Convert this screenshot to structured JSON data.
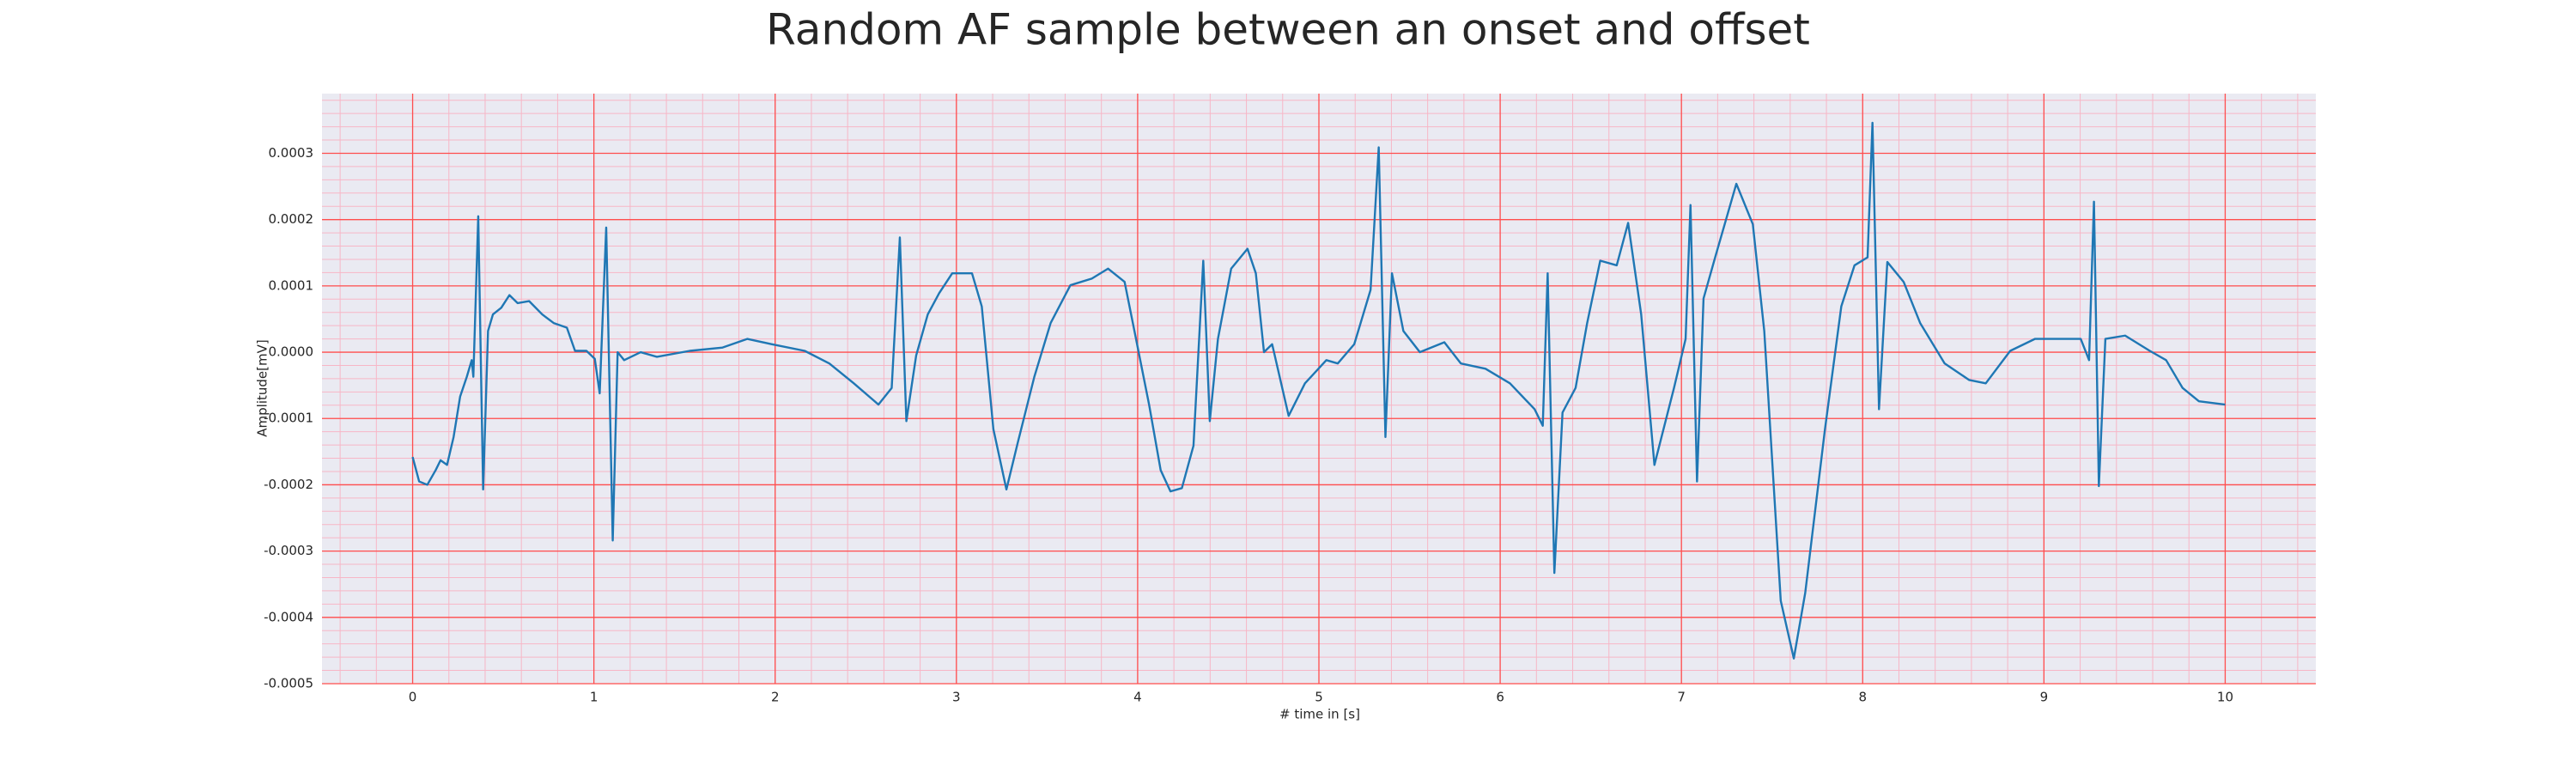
{
  "chart_data": {
    "type": "line",
    "title": "Random AF sample between an onset and offset",
    "x_label": "# time in [s]",
    "y_label": "Amplitude[mV]",
    "color": "#1f77b4",
    "background": "#eaeaf2",
    "grid": true,
    "grid_color": "#ff4d4d",
    "minor_grid": true,
    "minor_grid_color": "#f7b6c6",
    "xlim": [
      -0.5,
      10.5
    ],
    "ylim": [
      -0.0005,
      0.00039
    ],
    "xticks": [
      0,
      1,
      2,
      3,
      4,
      5,
      6,
      7,
      8,
      9,
      10
    ],
    "yticks": [
      -0.0005,
      -0.0004,
      -0.0003,
      -0.0002,
      -0.0001,
      {
        "value": 0,
        "label": "0.0000"
      },
      0.0001,
      0.0002,
      0.0003
    ],
    "x": [
      0,
      0.036,
      0.081,
      0.127,
      0.154,
      0.19,
      0.226,
      0.262,
      0.299,
      0.326,
      0.335,
      0.362,
      0.389,
      0.416,
      0.443,
      0.489,
      0.534,
      0.579,
      0.643,
      0.715,
      0.778,
      0.851,
      0.896,
      0.959,
      1.005,
      1.032,
      1.068,
      1.104,
      1.131,
      1.167,
      1.258,
      1.348,
      1.529,
      1.71,
      1.846,
      1.982,
      2.163,
      2.299,
      2.434,
      2.57,
      2.643,
      2.688,
      2.724,
      2.778,
      2.842,
      2.905,
      2.977,
      3.086,
      3.14,
      3.204,
      3.276,
      3.339,
      3.43,
      3.52,
      3.629,
      3.747,
      3.837,
      3.928,
      3.991,
      4.063,
      4.127,
      4.181,
      4.244,
      4.308,
      4.362,
      4.398,
      4.443,
      4.516,
      4.606,
      4.652,
      4.697,
      4.742,
      4.833,
      4.923,
      5.041,
      5.104,
      5.195,
      5.285,
      5.33,
      5.367,
      5.403,
      5.466,
      5.557,
      5.692,
      5.783,
      5.919,
      6.054,
      6.19,
      6.235,
      6.262,
      6.299,
      6.344,
      6.416,
      6.48,
      6.552,
      6.643,
      6.706,
      6.778,
      6.851,
      6.959,
      7.023,
      7.05,
      7.086,
      7.122,
      7.186,
      7.303,
      7.394,
      7.457,
      7.548,
      7.62,
      7.683,
      7.792,
      7.882,
      7.955,
      8.027,
      8.054,
      8.09,
      8.136,
      8.226,
      8.317,
      8.452,
      8.588,
      8.679,
      8.814,
      8.95,
      9.203,
      9.249,
      9.276,
      9.303,
      9.339,
      9.448,
      9.584,
      9.674,
      9.765,
      9.855,
      10
    ],
    "values": [
      -0.000158,
      -0.000195,
      -0.0002,
      -0.000178,
      -0.000163,
      -0.00017,
      -0.000128,
      -6.7e-05,
      -3.7e-05,
      -1.2e-05,
      -3.7e-05,
      0.000205,
      -0.000207,
      3.2e-05,
      5.7e-05,
      6.7e-05,
      8.6e-05,
      7.4e-05,
      7.7e-05,
      5.7e-05,
      4.4e-05,
      3.7e-05,
      2e-06,
      2e-06,
      -1e-05,
      -6.2e-05,
      0.000188,
      -0.000284,
      0,
      -1.2e-05,
      0,
      -7e-06,
      2e-06,
      7e-06,
      2e-05,
      1.2e-05,
      2e-06,
      -1.7e-05,
      -4.7e-05,
      -7.9e-05,
      -5.4e-05,
      0.000173,
      -0.000104,
      -5e-06,
      5.7e-05,
      8.9e-05,
      0.000119,
      0.000119,
      6.9e-05,
      -0.000116,
      -0.000207,
      -0.000136,
      -3.7e-05,
      4.4e-05,
      0.000101,
      0.000111,
      0.000126,
      0.000106,
      2e-05,
      -7.9e-05,
      -0.000178,
      -0.00021,
      -0.000205,
      -0.000141,
      0.000138,
      -0.000104,
      2e-05,
      0.000126,
      0.000156,
      0.000119,
      0,
      1.2e-05,
      -9.6e-05,
      -4.7e-05,
      -1.2e-05,
      -1.7e-05,
      1.2e-05,
      9.4e-05,
      0.000309,
      -0.000128,
      0.000119,
      3.2e-05,
      0,
      1.5e-05,
      -1.7e-05,
      -2.5e-05,
      -4.7e-05,
      -8.6e-05,
      -0.000111,
      0.000119,
      -0.000333,
      -9.1e-05,
      -5.4e-05,
      4.4e-05,
      0.000138,
      0.000131,
      0.000195,
      5.7e-05,
      -0.00017,
      -5.4e-05,
      2e-05,
      0.000222,
      -0.000195,
      8.1e-05,
      0.000143,
      0.000254,
      0.000193,
      3.2e-05,
      -0.000375,
      -0.000462,
      -0.000363,
      -0.000116,
      6.9e-05,
      0.000131,
      0.000143,
      0.000346,
      -8.6e-05,
      0.000136,
      0.000106,
      4.4e-05,
      -1.7e-05,
      -4.2e-05,
      -4.7e-05,
      2e-06,
      2e-05,
      2e-05,
      -1.2e-05,
      0.000227,
      -0.000202,
      2e-05,
      2.5e-05,
      2e-06,
      -1.2e-05,
      -5.4e-05,
      -7.4e-05,
      -7.9e-05
    ]
  }
}
